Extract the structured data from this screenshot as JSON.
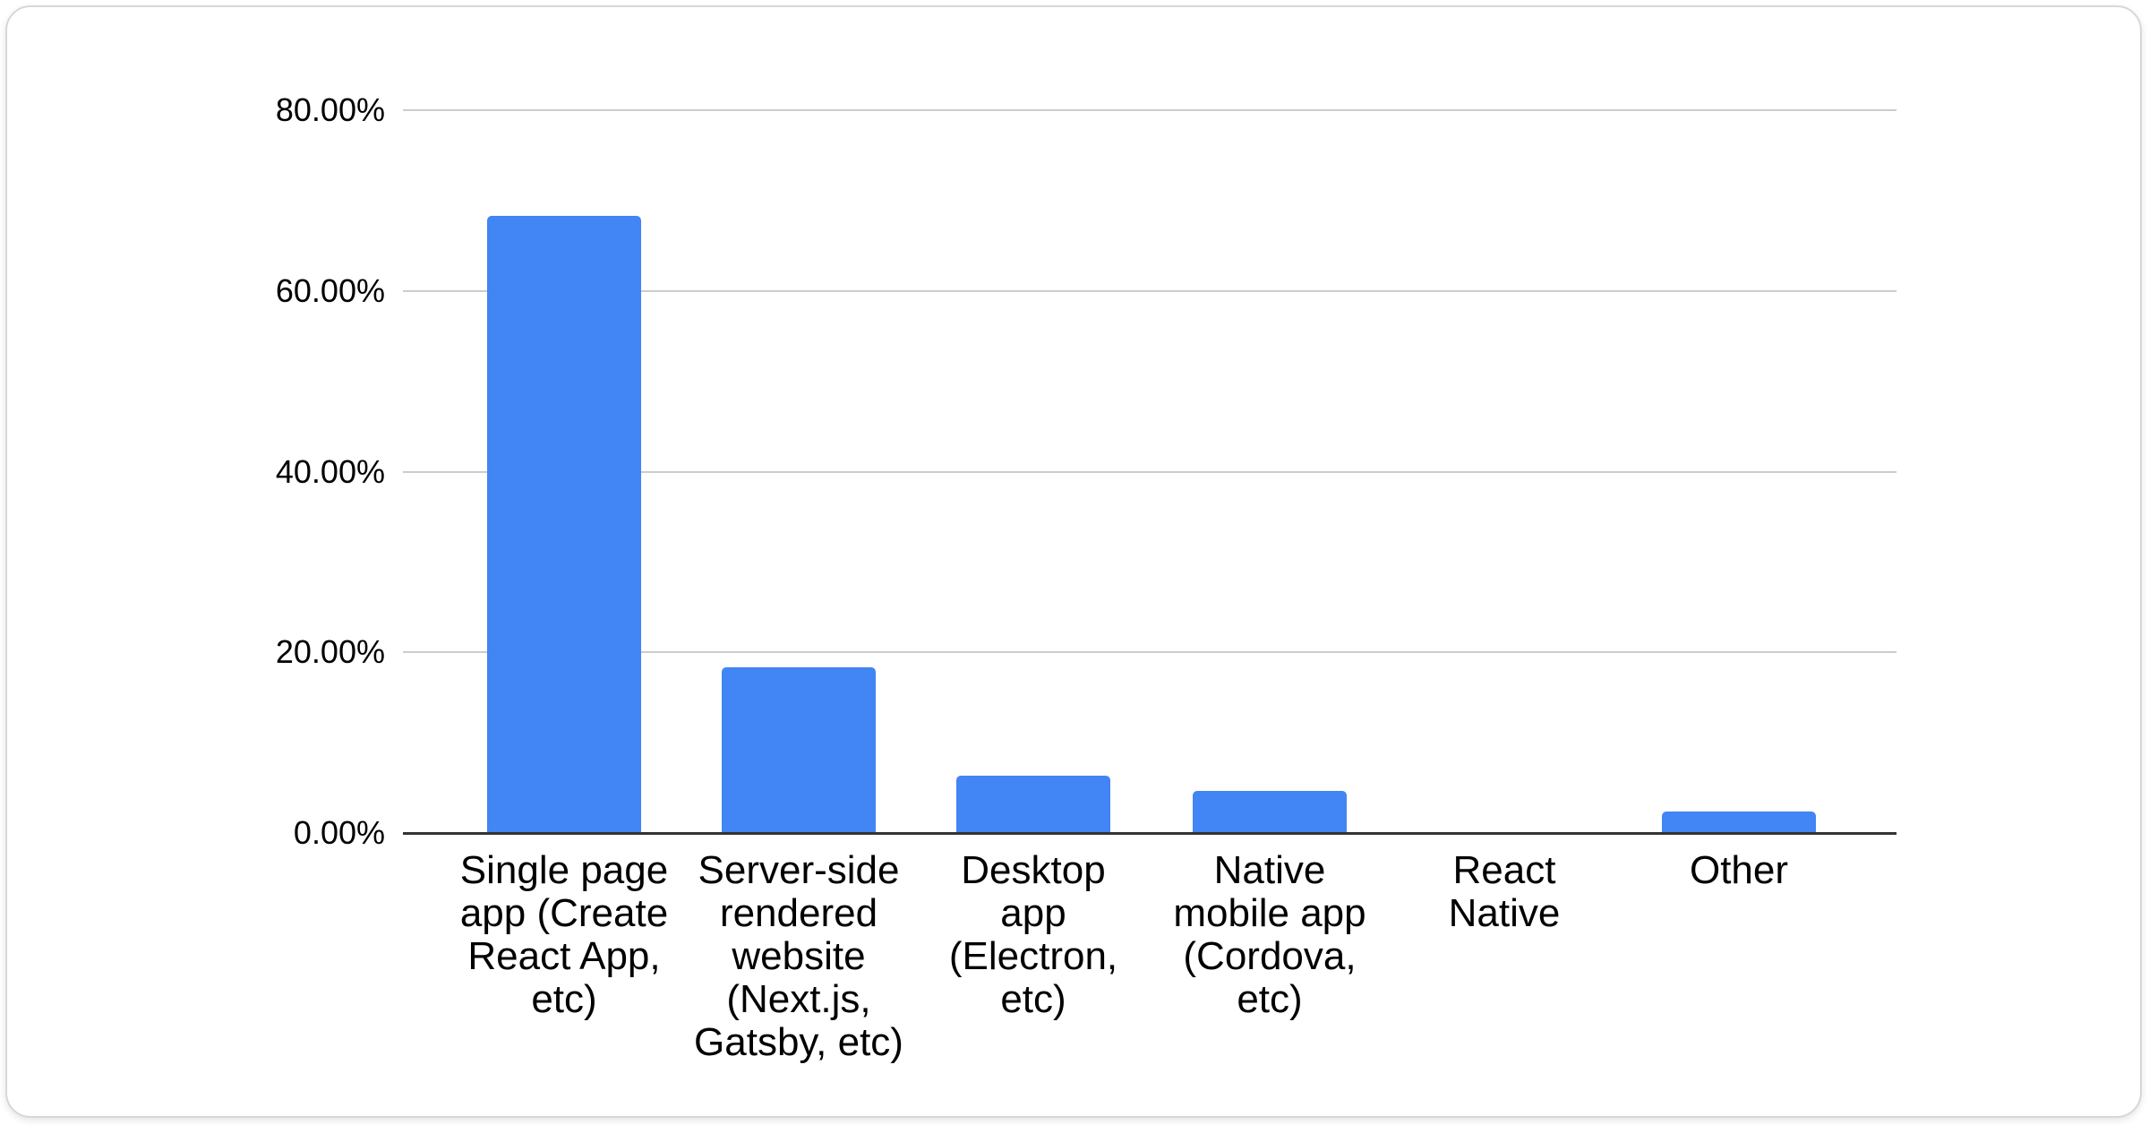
{
  "chart_data": {
    "type": "bar",
    "title": "",
    "xlabel": "",
    "ylabel": "",
    "categories": [
      "Single page app (Create React App, etc)",
      "Server-side rendered website (Next.js, Gatsby, etc)",
      "Desktop app (Electron, etc)",
      "Native mobile app (Cordova, etc)",
      "React Native",
      "Other"
    ],
    "category_labels_wrapped": [
      "Single page\napp (Create\nReact App,\netc)",
      "Server-side\nrendered\nwebsite\n(Next.js,\nGatsby, etc)",
      "Desktop\napp\n(Electron,\netc)",
      "Native\nmobile app\n(Cordova,\netc)",
      "React\nNative",
      "Other"
    ],
    "values": [
      68.3,
      18.3,
      6.3,
      4.7,
      0,
      2.4
    ],
    "value_unit": "%",
    "ylim": [
      0,
      80
    ],
    "y_ticks": [
      {
        "label": "80.00%",
        "value": 80
      },
      {
        "label": "60.00%",
        "value": 60
      },
      {
        "label": "40.00%",
        "value": 40
      },
      {
        "label": "20.00%",
        "value": 20
      },
      {
        "label": "0.00%",
        "value": 0
      }
    ],
    "grid": true,
    "legend_position": "none",
    "colors": {
      "bar": "#4285F4",
      "gridline": "#cccccc",
      "axis_line": "#333333",
      "label_text": "#000000",
      "card_border": "#d5d8db",
      "background": "#ffffff"
    }
  }
}
